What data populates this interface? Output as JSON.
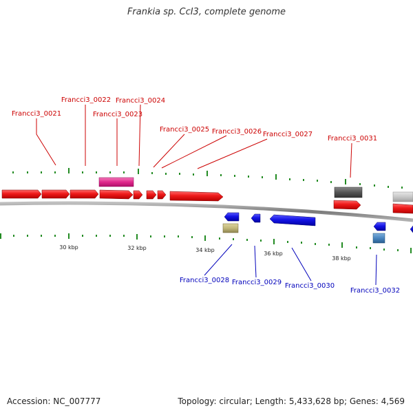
{
  "title": "Frankia sp. CcI3, complete genome",
  "footer": {
    "accession": "Accession: NC_007777",
    "summary": "Topology: circular; Length: 5,433,628 bp; Genes: 4,569"
  },
  "colors": {
    "forward_strand_gene": "#e8141c",
    "reverse_strand_gene": "#1414e6",
    "forward_label": "#cc0000",
    "reverse_label": "#0000bb",
    "backbone": "#8a8a8a",
    "tick": "#228b22",
    "misc_feature_pink": "#e0288c",
    "misc_feature_darkgray": "#555555",
    "misc_feature_lightgray": "#c8c8c8",
    "misc_feature_khaki": "#c2b87a",
    "misc_feature_steelblue": "#4a86c0"
  },
  "scale_labels": [
    "30 kbp",
    "32 kbp",
    "34 kbp",
    "36 kbp",
    "38 kbp"
  ],
  "gene_labels": {
    "forward": [
      "Francci3_0021",
      "Francci3_0022",
      "Francci3_0023",
      "Francci3_0024",
      "Francci3_0025",
      "Francci3_0026",
      "Francci3_0027",
      "Francci3_0031"
    ],
    "reverse": [
      "Francci3_0028",
      "Francci3_0029",
      "Francci3_0030",
      "Francci3_0032"
    ]
  }
}
